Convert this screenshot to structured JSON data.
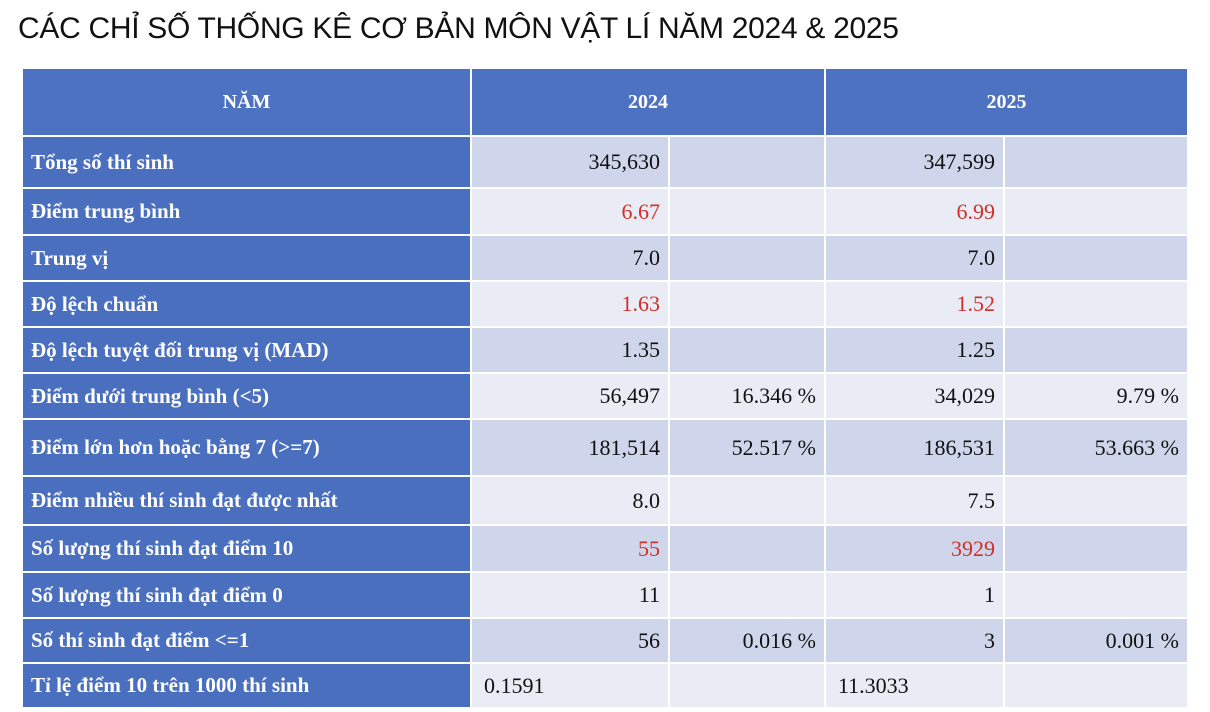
{
  "title": "CÁC CHỈ SỐ THỐNG KÊ CƠ BẢN MÔN VẬT LÍ NĂM 2024 & 2025",
  "table": {
    "header": [
      "NĂM",
      "2024",
      "2025"
    ],
    "rows": [
      {
        "label": "Tổng số thí sinh",
        "y2024": "345,630",
        "y2025": "347,599"
      },
      {
        "label": "Điểm trung bình",
        "y2024": "6.67",
        "y2025": "6.99"
      },
      {
        "label": "Trung vị",
        "y2024": "7.0",
        "y2025": "7.0"
      },
      {
        "label": "Độ lệch chuẩn",
        "y2024": "1.63",
        "y2025": "1.52"
      },
      {
        "label": "Độ lệch tuyệt đối trung vị (MAD)",
        "y2024": "1.35",
        "y2025": "1.25"
      },
      {
        "label": "Điểm dưới trung bình (<5)",
        "y2024": "56,497",
        "pct2024": "16.346 %",
        "y2025": "34,029",
        "pct2025": "9.79 %"
      },
      {
        "label": "Điểm lớn hơn hoặc bằng 7 (>=7)",
        "y2024": "181,514",
        "pct2024": "52.517 %",
        "y2025": "186,531",
        "pct2025": "53.663 %"
      },
      {
        "label": "Điểm nhiều thí sinh đạt được nhất",
        "y2024": "8.0",
        "y2025": "7.5"
      },
      {
        "label": "Số lượng thí sinh đạt điểm 10",
        "y2024": "55",
        "y2025": "3929"
      },
      {
        "label": "Số lượng thí sinh đạt điểm 0",
        "y2024": "11",
        "y2025": "1"
      },
      {
        "label": "Số thí sinh đạt điểm <=1",
        "y2024": "56",
        "pct2024": "0.016 %",
        "y2025": "3",
        "pct2025": "0.001 %"
      },
      {
        "label": "Tỉ lệ điểm 10 trên 1000 thí sinh",
        "y2024": "0.1591",
        "y2025": "11.3033"
      }
    ]
  }
}
